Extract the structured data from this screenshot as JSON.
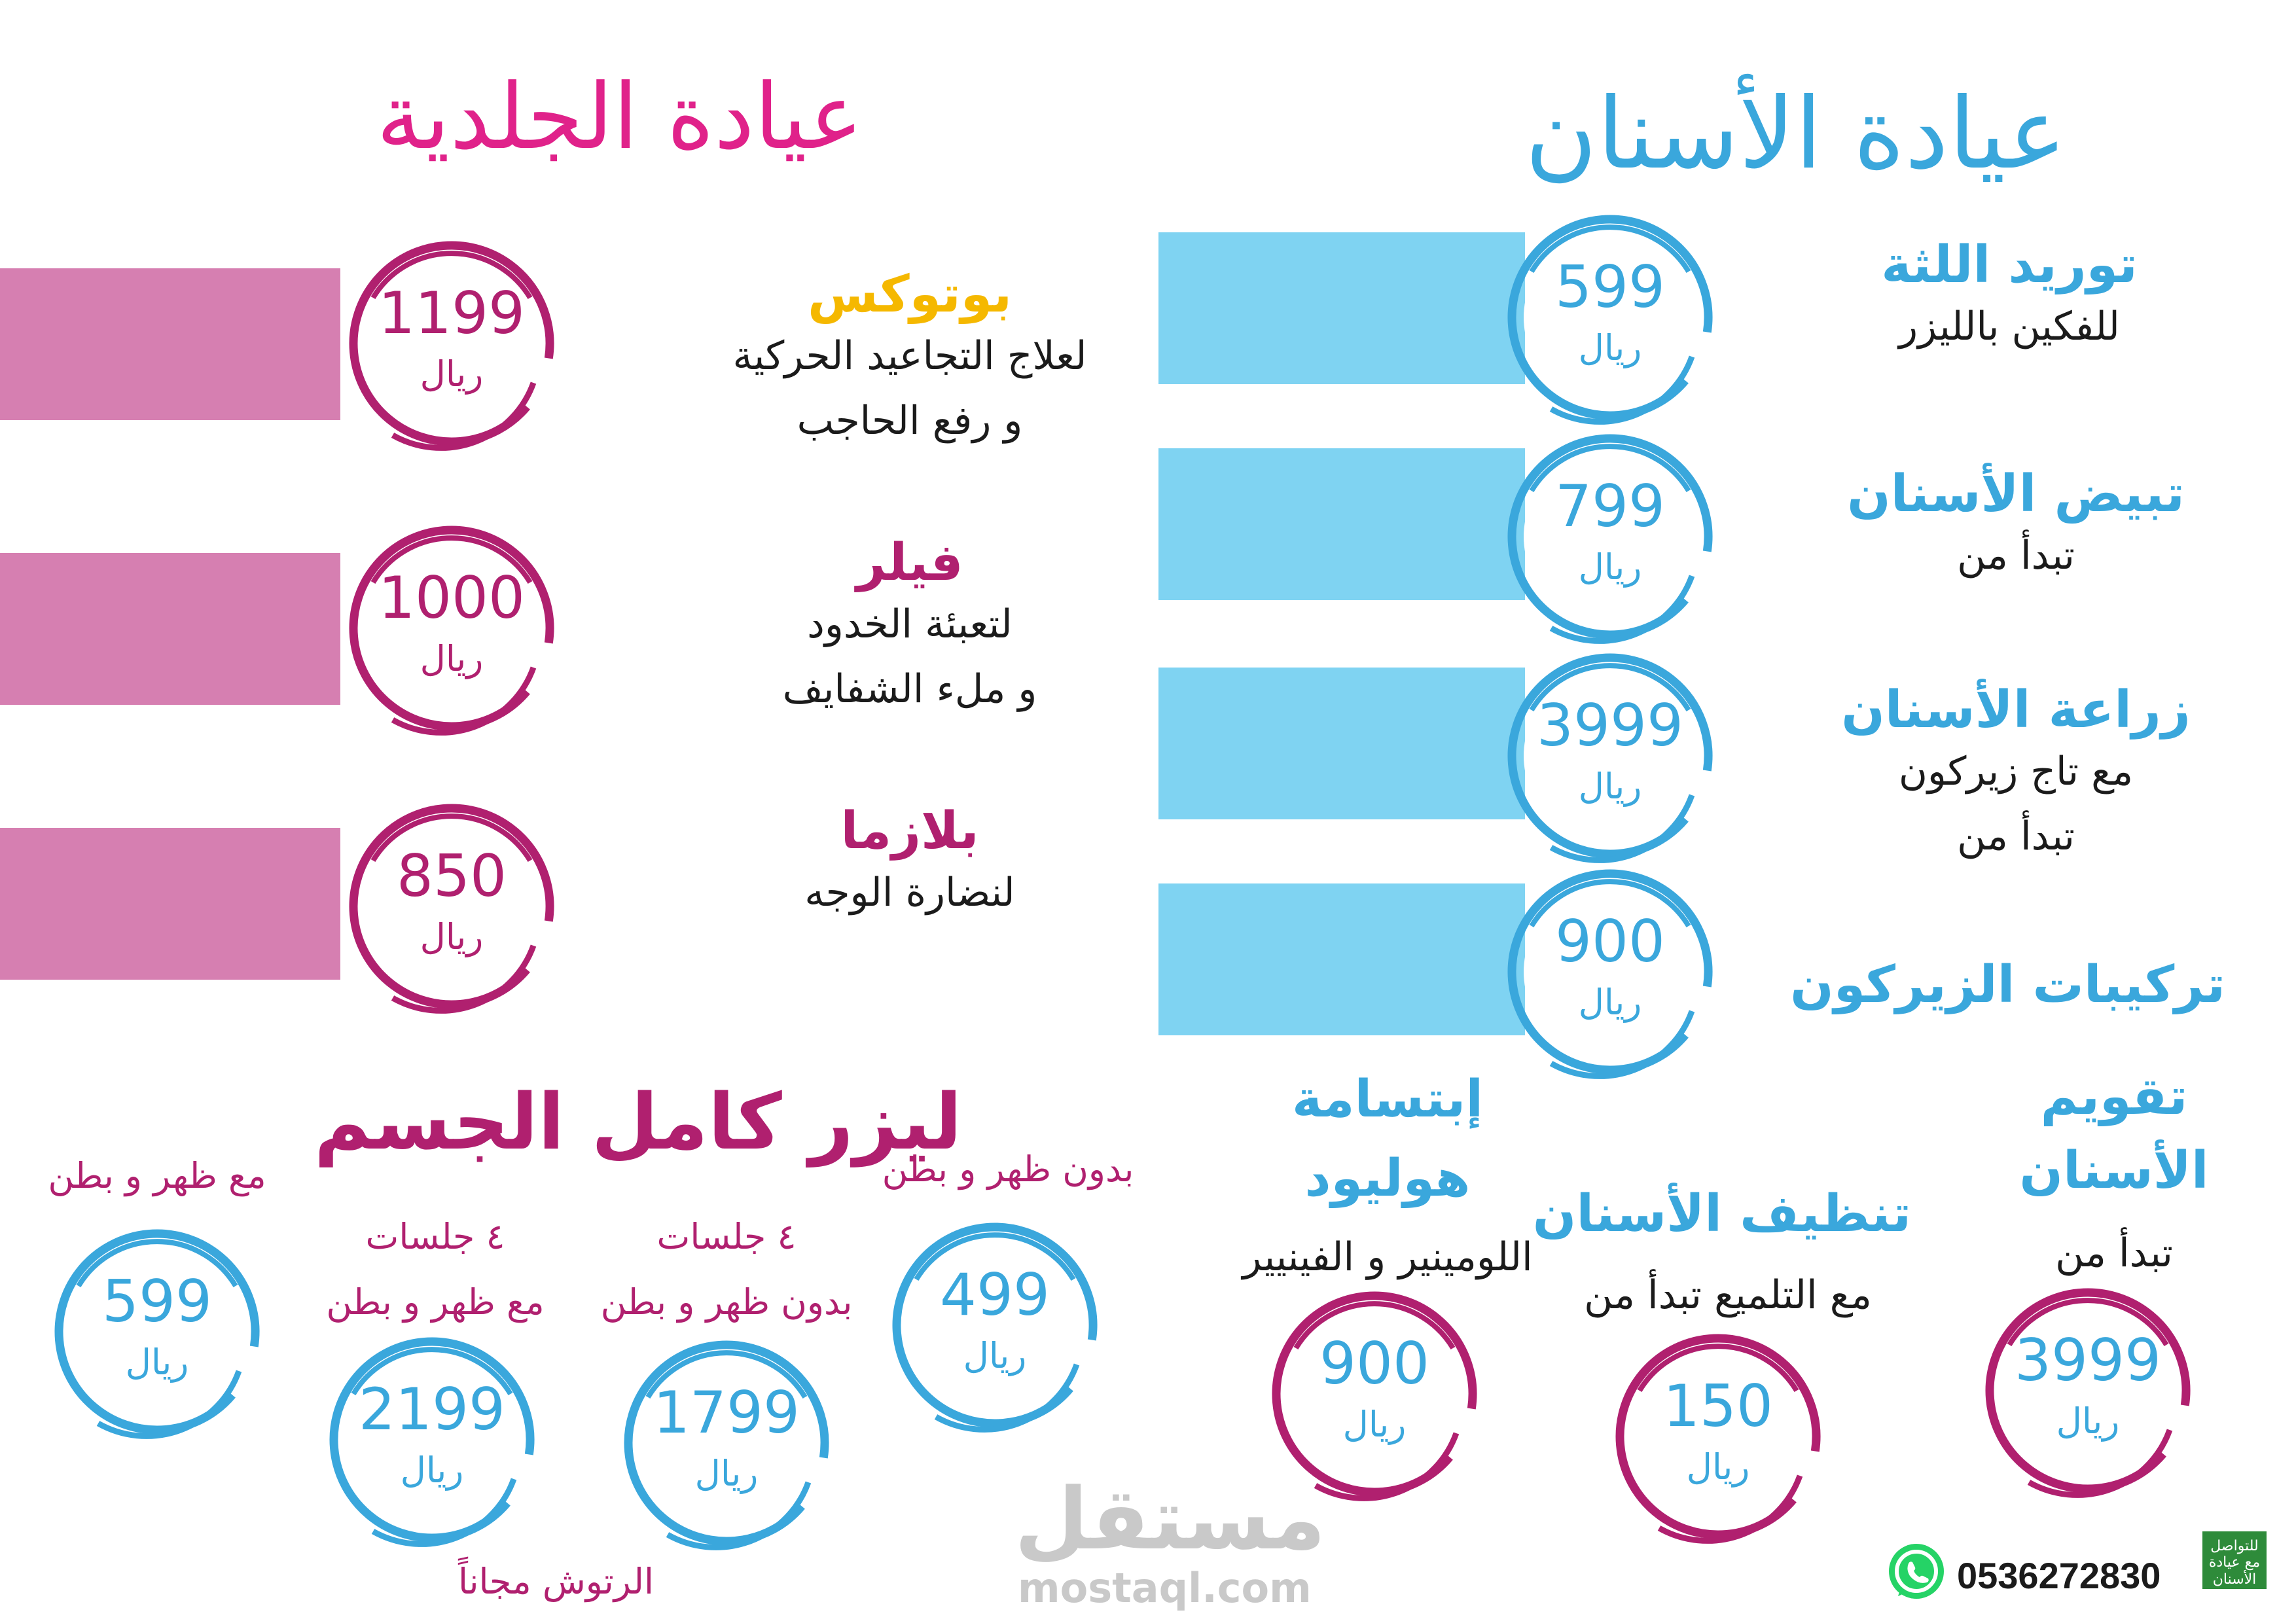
{
  "colors": {
    "dental_blue": "#3aa7dc",
    "bar_blue": "#7fd3f2",
    "derm_magenta": "#b0206f",
    "derm_pink_title": "#e0228a",
    "bar_pink": "#d67fb1",
    "botox_yellow": "#f5b800",
    "whatsapp_green": "#25d366"
  },
  "dental": {
    "title": "عيادة الأسنان",
    "services": [
      {
        "name": "توريد اللثة",
        "desc": [
          "للفكين بالليزر"
        ],
        "price": "599",
        "currency": "ريال"
      },
      {
        "name": "تبيض الأسنان",
        "desc": [
          "تبدأ من"
        ],
        "price": "799",
        "currency": "ريال"
      },
      {
        "name": "زراعة الأسنان",
        "desc": [
          "مع تاج زيركون",
          "تبدأ من"
        ],
        "price": "3999",
        "currency": "ريال"
      },
      {
        "name": "تركيبات الزيركون",
        "desc": [],
        "price": "900",
        "currency": "ريال"
      }
    ],
    "bottom": [
      {
        "name_lines": [
          "تقويم",
          "الأسنان"
        ],
        "desc": "تبدأ من",
        "price": "3999",
        "currency": "ريال"
      },
      {
        "name_lines": [
          "تنظيف الأسنان"
        ],
        "desc": "مع التلميع تبدأ من",
        "price": "150",
        "currency": "ريال"
      },
      {
        "name_lines": [
          "إبتسامة",
          "هوليود"
        ],
        "desc": "اللومينير و الفينيير",
        "price": "900",
        "currency": "ريال"
      }
    ]
  },
  "derm": {
    "title": "عيادة الجلدية",
    "services": [
      {
        "name": "بوتوكس",
        "desc": [
          "لعلاج التجاعيد الحركية",
          "و رفع الحاجب"
        ],
        "price": "1199",
        "currency": "ريال"
      },
      {
        "name": "فيلر",
        "desc": [
          "لتعبئة الخدود",
          "و ملء الشفايف"
        ],
        "price": "1000",
        "currency": "ريال"
      },
      {
        "name": "بلازما",
        "desc": [
          "لنضارة الوجه"
        ],
        "price": "850",
        "currency": "ريال"
      }
    ]
  },
  "laser": {
    "title": "ليزر كامل الجسم",
    "options": [
      {
        "label": [
          "بدون ظهر و بطن"
        ],
        "price": "499",
        "currency": "ريال"
      },
      {
        "label": [
          "٤ جلسات",
          "بدون ظهر و بطن"
        ],
        "price": "1799",
        "currency": "ريال"
      },
      {
        "label": [
          "٤ جلسات",
          "مع ظهر و بطن"
        ],
        "price": "2199",
        "currency": "ريال"
      },
      {
        "label": [
          "مع ظهر و بطن"
        ],
        "price": "599",
        "currency": "ريال"
      }
    ],
    "note": "الرتوش مجاناً"
  },
  "contact": {
    "phone": "0536272830",
    "badge_text": [
      "للتواصل",
      "مع عيادة",
      "الأسنان"
    ],
    "whatsapp_icon": "whatsapp-icon"
  },
  "watermark": {
    "arabic": "مستقل",
    "latin": "mostaql.com"
  }
}
